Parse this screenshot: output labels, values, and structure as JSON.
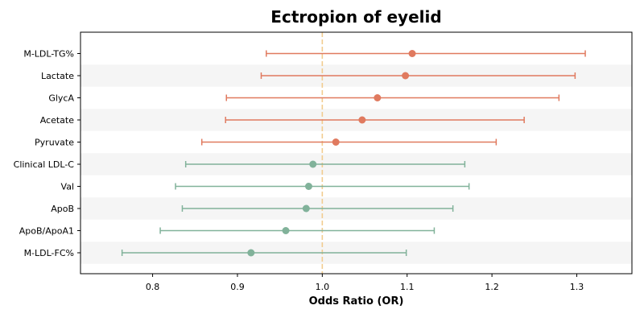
{
  "chart_data": {
    "type": "forest",
    "title": "Ectropion of eyelid",
    "xlabel": "Odds Ratio (OR)",
    "xlim": [
      0.715,
      1.365
    ],
    "x_ticks": [
      0.8,
      0.9,
      1.0,
      1.1,
      1.2,
      1.3
    ],
    "x_tick_labels": [
      "0.8",
      "0.9",
      "1.0",
      "1.1",
      "1.2",
      "1.3"
    ],
    "reference_line": 1.0,
    "row_shading": "alternating",
    "rows": [
      {
        "label": "M-LDL-TG%",
        "or": 1.106,
        "lower": 0.934,
        "upper": 1.31,
        "color": "#e07a5f"
      },
      {
        "label": "Lactate",
        "or": 1.098,
        "lower": 0.928,
        "upper": 1.298,
        "color": "#e07a5f"
      },
      {
        "label": "GlycA",
        "or": 1.065,
        "lower": 0.887,
        "upper": 1.279,
        "color": "#e07a5f"
      },
      {
        "label": "Acetate",
        "or": 1.047,
        "lower": 0.886,
        "upper": 1.238,
        "color": "#e07a5f"
      },
      {
        "label": "Pyruvate",
        "or": 1.016,
        "lower": 0.858,
        "upper": 1.205,
        "color": "#e07a5f"
      },
      {
        "label": "Clinical LDL-C",
        "or": 0.989,
        "lower": 0.839,
        "upper": 1.168,
        "color": "#81b29a"
      },
      {
        "label": "Val",
        "or": 0.984,
        "lower": 0.827,
        "upper": 1.173,
        "color": "#81b29a"
      },
      {
        "label": "ApoB",
        "or": 0.981,
        "lower": 0.835,
        "upper": 1.154,
        "color": "#81b29a"
      },
      {
        "label": "ApoB/ApoA1",
        "or": 0.957,
        "lower": 0.809,
        "upper": 1.132,
        "color": "#81b29a"
      },
      {
        "label": "M-LDL-FC%",
        "or": 0.916,
        "lower": 0.764,
        "upper": 1.099,
        "color": "#81b29a"
      }
    ],
    "colors": {
      "increase": "#e07a5f",
      "decrease": "#81b29a",
      "reference": "#f2cc8f",
      "shade": "#f5f5f5"
    }
  }
}
